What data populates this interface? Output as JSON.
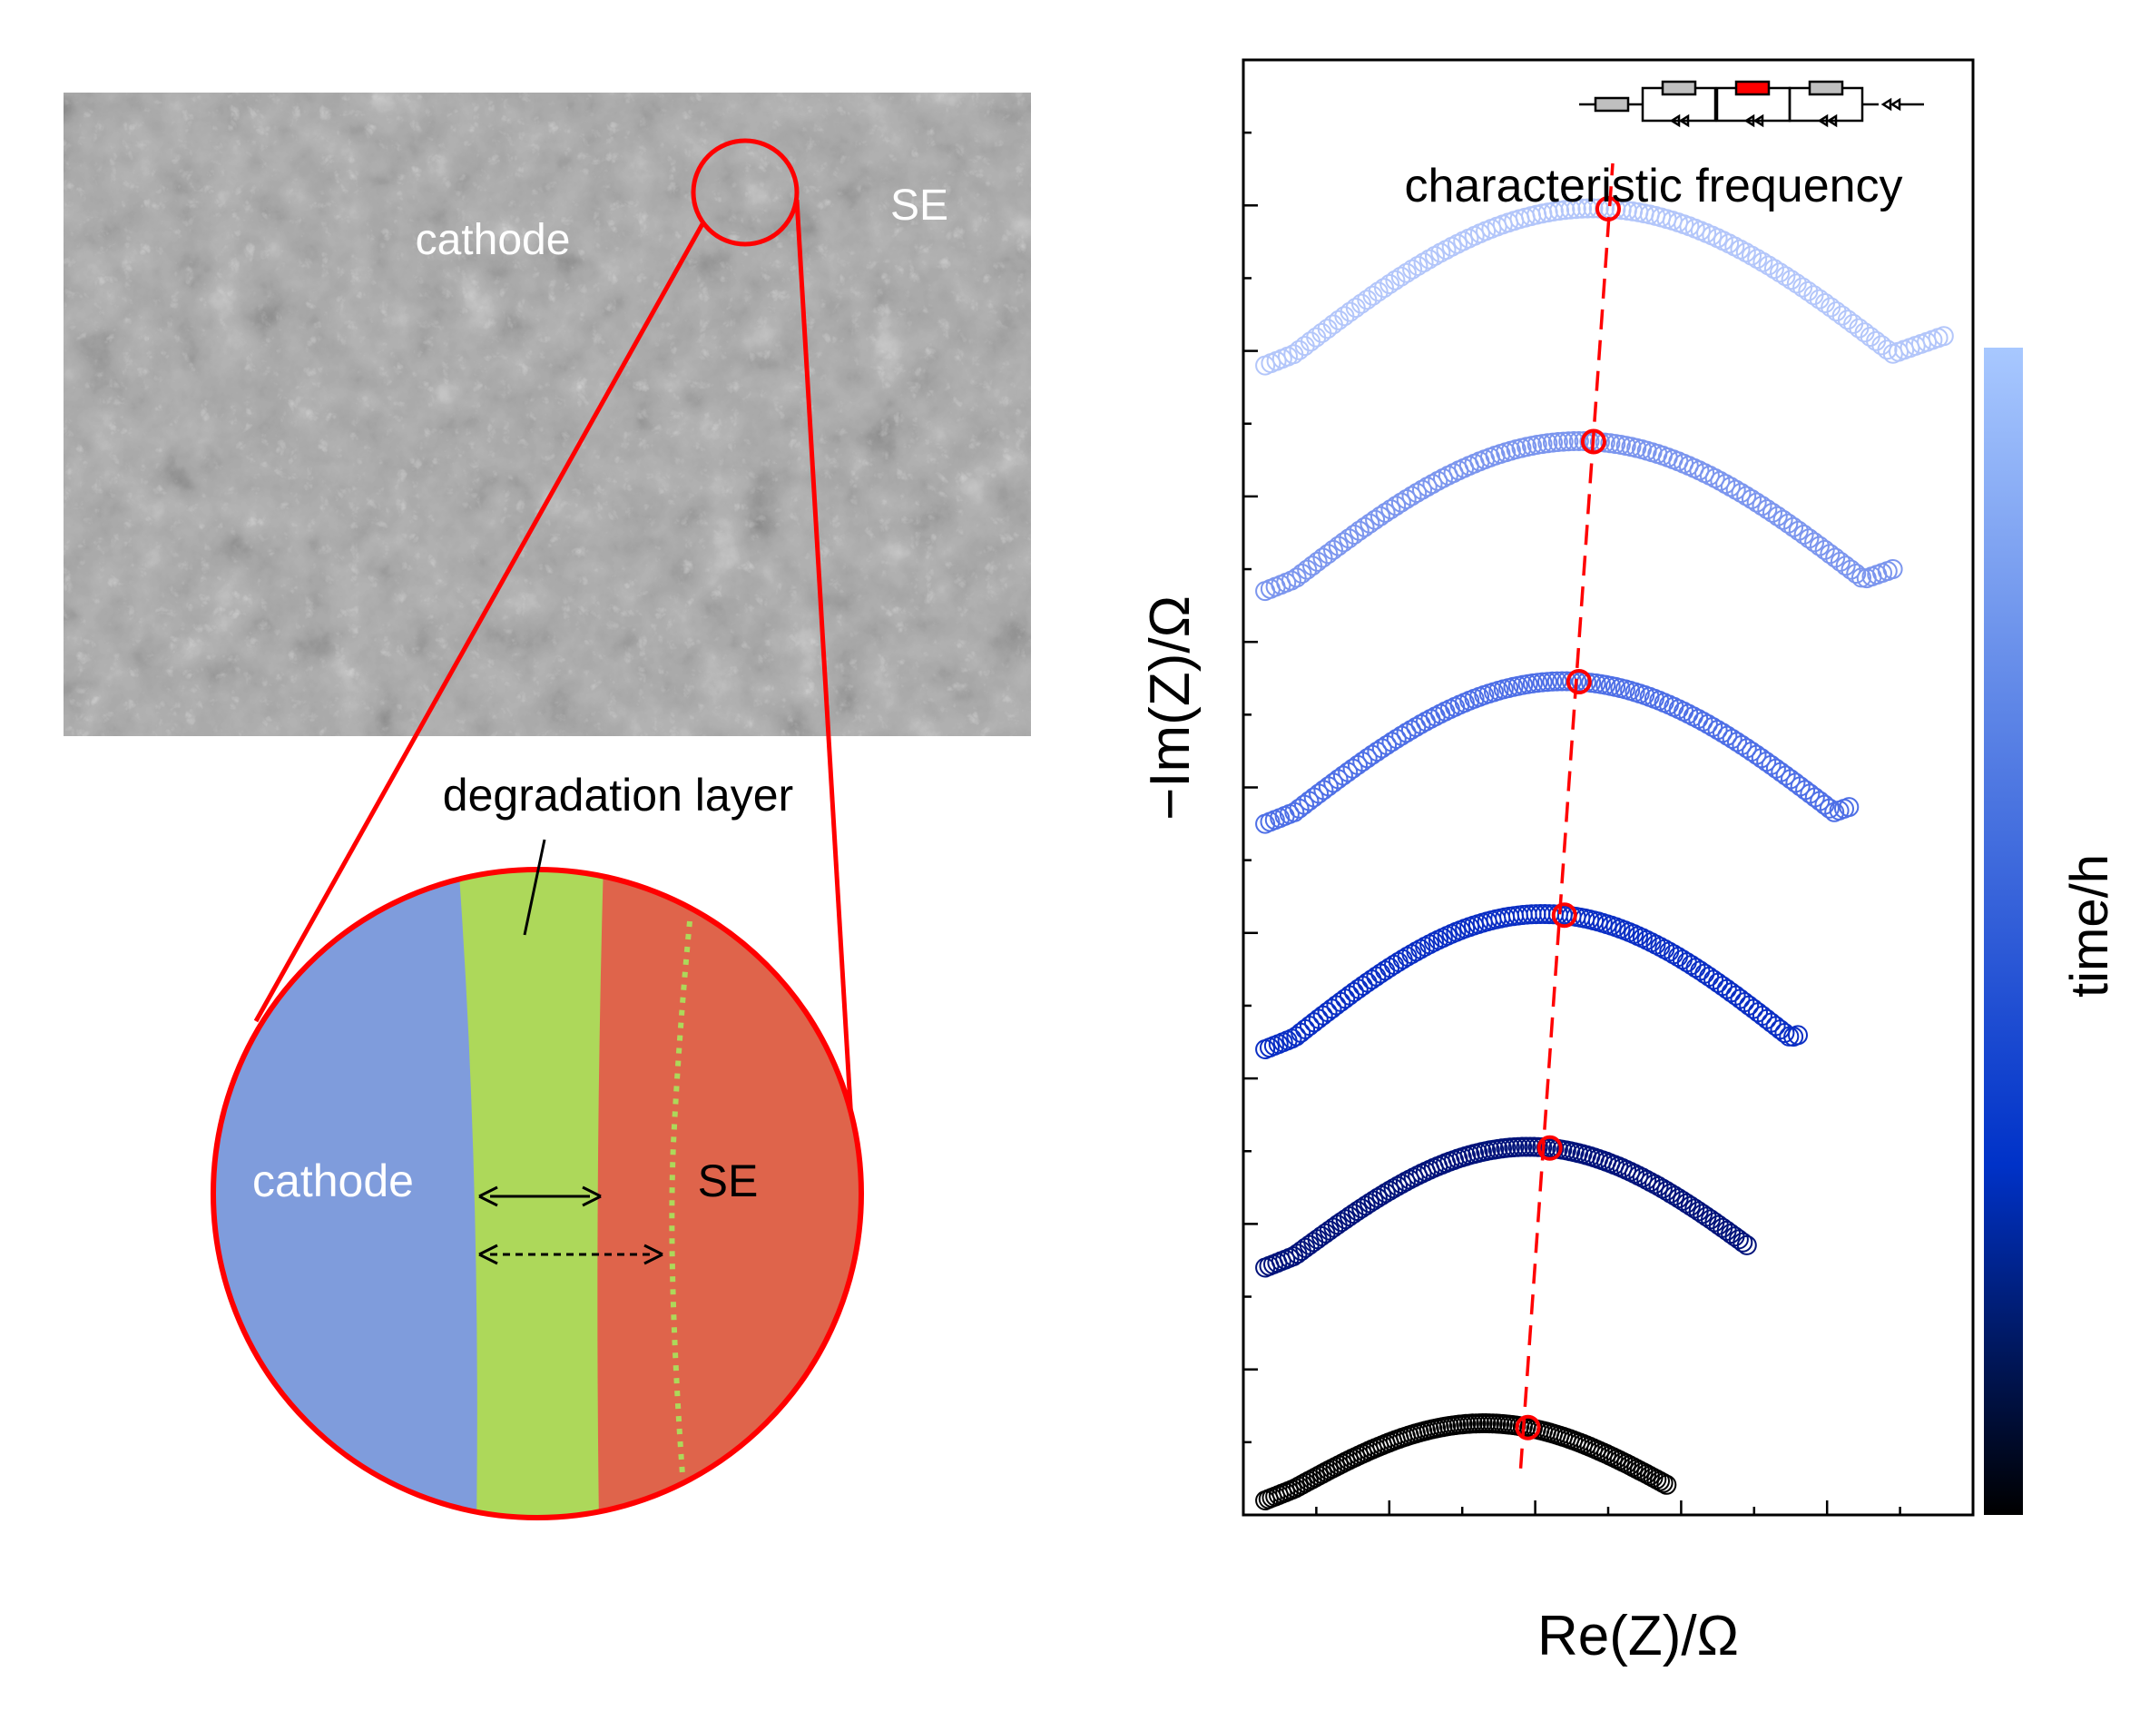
{
  "sem_image": {
    "label_cathode": "cathode",
    "label_se": "SE",
    "colors": {
      "background": "#6b6b6b",
      "highlight": "#d9d9d9",
      "shadow": "#1e1e1e"
    }
  },
  "zoom": {
    "callout_label": "degradation layer",
    "label_cathode": "cathode",
    "label_se": "SE",
    "colors": {
      "cathode": "#7f9cdc",
      "degradation_layer": "#add85a",
      "se": "#df644b",
      "outline": "#ff0000",
      "dotted_boundary": "#add85a"
    }
  },
  "plot": {
    "ylabel": "−Im(Z)/Ω",
    "xlabel": "Re(Z)/Ω",
    "annotation": "characteristic frequency",
    "colorbar_label": "time/h",
    "circuit_icon": "equivalent-circuit-icon",
    "colors": {
      "marker_freq": "#ff0000",
      "trend_line": "#ff0000",
      "colorbar_top": "#a8c8ff",
      "colorbar_mid": "#0032c8",
      "colorbar_bottom": "#000000"
    }
  },
  "chart_data": {
    "type": "scatter",
    "title": "",
    "xlabel": "Re(Z)/Ω",
    "ylabel": "−Im(Z)/Ω",
    "series": [
      {
        "color": "#000000",
        "offset": 0,
        "x_end": 2.2,
        "peak_x": 0.95,
        "freq_x": 1.25,
        "amplitude": 0.45
      },
      {
        "color": "#00127a",
        "offset": 1.6,
        "x_end": 2.75,
        "peak_x": 1.25,
        "freq_x": 1.4,
        "amplitude": 0.75
      },
      {
        "color": "#0a2ec4",
        "offset": 3.1,
        "x_end": 3.1,
        "peak_x": 1.35,
        "freq_x": 1.5,
        "amplitude": 0.85
      },
      {
        "color": "#4e6fe6",
        "offset": 4.65,
        "x_end": 3.45,
        "peak_x": 1.5,
        "freq_x": 1.6,
        "amplitude": 0.9
      },
      {
        "color": "#7c96ee",
        "offset": 6.25,
        "x_end": 3.75,
        "peak_x": 1.6,
        "freq_x": 1.7,
        "amplitude": 0.95
      },
      {
        "color": "#b3c6fa",
        "offset": 7.8,
        "x_end": 4.1,
        "peak_x": 1.7,
        "freq_x": 1.8,
        "amplitude": 1.0
      }
    ],
    "xlim": [
      -0.7,
      4.3
    ],
    "ylim": [
      -0.1,
      9.9
    ],
    "grid": false,
    "legend": "none"
  }
}
